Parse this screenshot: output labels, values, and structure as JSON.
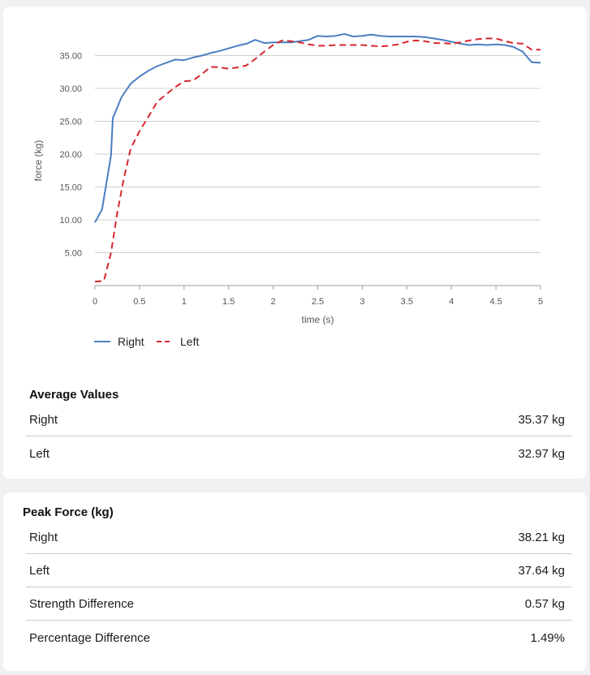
{
  "chart_data": {
    "type": "line",
    "xlabel": "time (s)",
    "ylabel": "force (kg)",
    "xlim": [
      0,
      5
    ],
    "ylim": [
      0,
      40
    ],
    "x_ticks": [
      "0",
      "0.5",
      "1",
      "1.5",
      "2",
      "2.5",
      "3",
      "3.5",
      "4",
      "4.5",
      "5"
    ],
    "y_ticks": [
      "5.00",
      "10.00",
      "15.00",
      "20.00",
      "25.00",
      "30.00",
      "35.00"
    ],
    "grid": "horizontal",
    "legend": "bottom-left",
    "series": [
      {
        "name": "Right",
        "color": "#4a7ec1",
        "style": "solid",
        "points": [
          [
            0,
            9.6
          ],
          [
            0.08,
            11.6
          ],
          [
            0.18,
            19.8
          ],
          [
            0.2,
            25.5
          ],
          [
            0.3,
            28.7
          ],
          [
            0.4,
            30.7
          ],
          [
            0.5,
            31.8
          ],
          [
            0.6,
            32.7
          ],
          [
            0.7,
            33.4
          ],
          [
            0.8,
            33.9
          ],
          [
            0.9,
            34.4
          ],
          [
            1.0,
            34.3
          ],
          [
            1.1,
            34.7
          ],
          [
            1.2,
            35.0
          ],
          [
            1.3,
            35.4
          ],
          [
            1.4,
            35.7
          ],
          [
            1.5,
            36.1
          ],
          [
            1.6,
            36.5
          ],
          [
            1.7,
            36.8
          ],
          [
            1.8,
            37.4
          ],
          [
            1.9,
            36.9
          ],
          [
            2.0,
            37.0
          ],
          [
            2.1,
            37.0
          ],
          [
            2.2,
            37.0
          ],
          [
            2.3,
            37.2
          ],
          [
            2.4,
            37.4
          ],
          [
            2.5,
            38.0
          ],
          [
            2.6,
            37.9
          ],
          [
            2.7,
            38.0
          ],
          [
            2.8,
            38.3
          ],
          [
            2.9,
            37.9
          ],
          [
            3.0,
            38.0
          ],
          [
            3.1,
            38.2
          ],
          [
            3.2,
            38.0
          ],
          [
            3.3,
            37.9
          ],
          [
            3.4,
            37.9
          ],
          [
            3.5,
            37.9
          ],
          [
            3.6,
            37.9
          ],
          [
            3.7,
            37.8
          ],
          [
            3.8,
            37.6
          ],
          [
            3.9,
            37.4
          ],
          [
            4.0,
            37.1
          ],
          [
            4.1,
            36.8
          ],
          [
            4.2,
            36.6
          ],
          [
            4.3,
            36.7
          ],
          [
            4.4,
            36.6
          ],
          [
            4.5,
            36.7
          ],
          [
            4.6,
            36.6
          ],
          [
            4.7,
            36.3
          ],
          [
            4.8,
            35.6
          ],
          [
            4.9,
            34.0
          ],
          [
            5.0,
            33.9
          ]
        ]
      },
      {
        "name": "Left",
        "color": "#d7262e",
        "style": "dashed",
        "points": [
          [
            0,
            0.6
          ],
          [
            0.1,
            0.7
          ],
          [
            0.18,
            5.0
          ],
          [
            0.25,
            11.0
          ],
          [
            0.32,
            16.0
          ],
          [
            0.4,
            20.8
          ],
          [
            0.5,
            23.5
          ],
          [
            0.6,
            25.7
          ],
          [
            0.7,
            28.0
          ],
          [
            0.8,
            29.1
          ],
          [
            0.9,
            30.2
          ],
          [
            1.0,
            31.1
          ],
          [
            1.1,
            31.2
          ],
          [
            1.2,
            32.2
          ],
          [
            1.3,
            33.3
          ],
          [
            1.4,
            33.2
          ],
          [
            1.5,
            33.0
          ],
          [
            1.6,
            33.2
          ],
          [
            1.7,
            33.5
          ],
          [
            1.8,
            34.5
          ],
          [
            1.9,
            35.6
          ],
          [
            2.0,
            36.6
          ],
          [
            2.1,
            37.3
          ],
          [
            2.2,
            37.2
          ],
          [
            2.3,
            37.0
          ],
          [
            2.4,
            36.7
          ],
          [
            2.5,
            36.5
          ],
          [
            2.6,
            36.5
          ],
          [
            2.7,
            36.6
          ],
          [
            2.8,
            36.6
          ],
          [
            2.9,
            36.6
          ],
          [
            3.0,
            36.6
          ],
          [
            3.1,
            36.5
          ],
          [
            3.2,
            36.4
          ],
          [
            3.3,
            36.5
          ],
          [
            3.4,
            36.7
          ],
          [
            3.5,
            37.1
          ],
          [
            3.6,
            37.3
          ],
          [
            3.7,
            37.2
          ],
          [
            3.8,
            36.9
          ],
          [
            3.9,
            36.9
          ],
          [
            4.0,
            36.8
          ],
          [
            4.1,
            37.0
          ],
          [
            4.2,
            37.3
          ],
          [
            4.3,
            37.5
          ],
          [
            4.4,
            37.6
          ],
          [
            4.5,
            37.6
          ],
          [
            4.6,
            37.2
          ],
          [
            4.7,
            36.9
          ],
          [
            4.8,
            36.8
          ],
          [
            4.9,
            35.9
          ],
          [
            5.0,
            35.9
          ]
        ]
      }
    ]
  },
  "average": {
    "title": "Average Values",
    "rows": [
      {
        "label": "Right",
        "value": "35.37 kg"
      },
      {
        "label": "Left",
        "value": "32.97 kg"
      }
    ]
  },
  "peak": {
    "title": "Peak Force (kg)",
    "rows": [
      {
        "label": "Right",
        "value": "38.21 kg"
      },
      {
        "label": "Left",
        "value": "37.64 kg"
      },
      {
        "label": "Strength Difference",
        "value": "0.57 kg"
      },
      {
        "label": "Percentage Difference",
        "value": "1.49%"
      }
    ]
  }
}
